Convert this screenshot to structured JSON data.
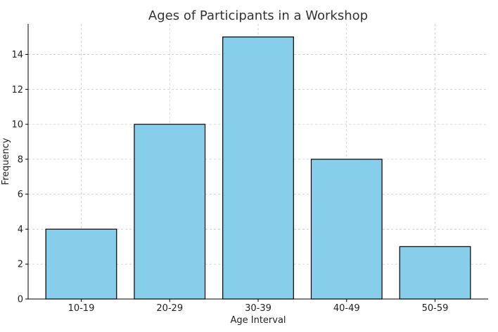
{
  "chart_data": {
    "type": "bar",
    "title": "Ages of Participants in a Workshop",
    "xlabel": "Age Interval",
    "ylabel": "Frequency",
    "categories": [
      "10-19",
      "20-29",
      "30-39",
      "40-49",
      "50-59"
    ],
    "values": [
      4,
      10,
      15,
      8,
      3
    ],
    "ylim": [
      0,
      15.75
    ],
    "yticks": [
      0,
      2,
      4,
      6,
      8,
      10,
      12,
      14
    ],
    "grid": true,
    "bar_color": "#87CEEB",
    "edge_color": "#000000"
  }
}
